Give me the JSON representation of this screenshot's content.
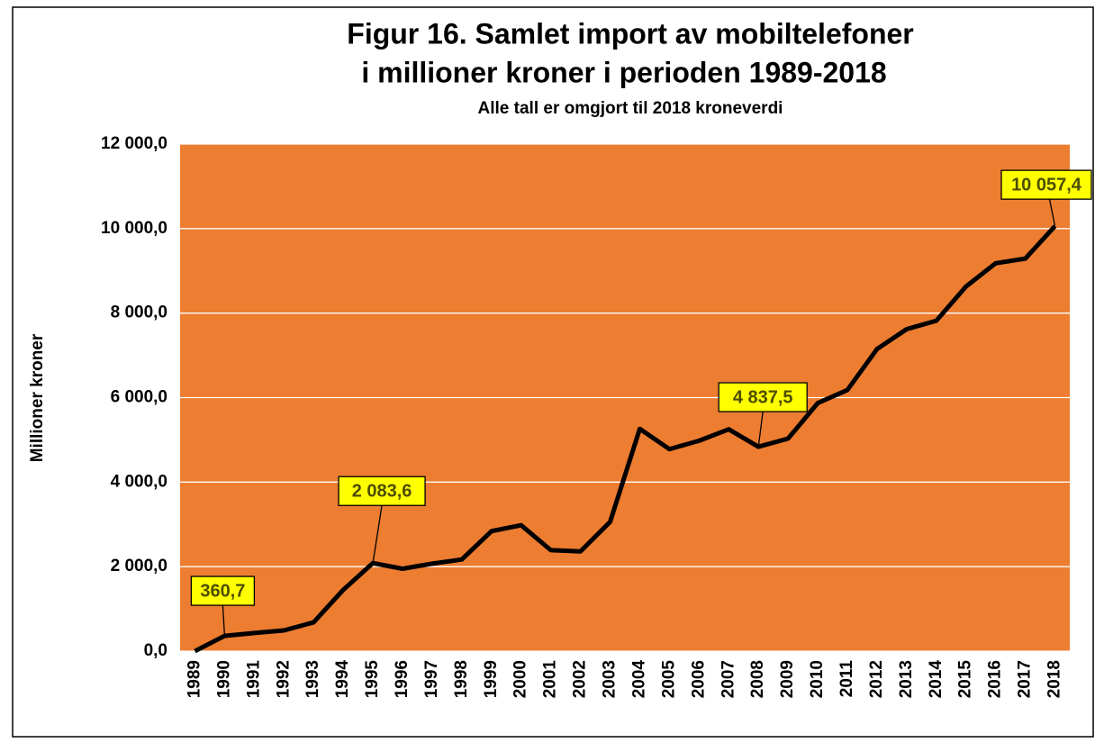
{
  "chart_data": {
    "type": "line",
    "title": [
      "Figur 16. Samlet import av mobiltelefoner",
      "i millioner kroner i perioden 1989-2018"
    ],
    "subtitle": "Alle tall er omgjort til 2018 kroneverdi",
    "y_label": "Millioner kroner",
    "categories": [
      "1989",
      "1990",
      "1991",
      "1992",
      "1993",
      "1994",
      "1995",
      "1996",
      "1997",
      "1998",
      "1999",
      "2000",
      "2001",
      "2002",
      "2003",
      "2004",
      "2005",
      "2006",
      "2007",
      "2008",
      "2009",
      "2010",
      "2011",
      "2012",
      "2013",
      "2014",
      "2015",
      "2016",
      "2017",
      "2018"
    ],
    "values": [
      0,
      360.7,
      430,
      490,
      680,
      1450,
      2083.6,
      1950,
      2070,
      2170,
      2840,
      2980,
      2390,
      2360,
      3060,
      5260,
      4780,
      4980,
      5250,
      4837.5,
      5030,
      5870,
      6180,
      7150,
      7620,
      7820,
      8630,
      9180,
      9290,
      10057.4
    ],
    "value_labels": [
      null,
      "360,7",
      null,
      null,
      null,
      null,
      "2 083,6",
      null,
      null,
      null,
      null,
      null,
      null,
      null,
      null,
      null,
      null,
      null,
      null,
      "4 837,5",
      null,
      null,
      null,
      null,
      null,
      null,
      null,
      null,
      null,
      "10 057,4"
    ],
    "color": "#000000",
    "plot_background": "#ed7d31",
    "label_background": "#ffff00",
    "ylim": [
      0,
      12000
    ],
    "yticks": [
      {
        "value": 0,
        "label": "0,0"
      },
      {
        "value": 2000,
        "label": "2 000,0"
      },
      {
        "value": 4000,
        "label": "4 000,0"
      },
      {
        "value": 6000,
        "label": "6 000,0"
      },
      {
        "value": 8000,
        "label": "8 000,0"
      },
      {
        "value": 10000,
        "label": "10 000,0"
      },
      {
        "value": 12000,
        "label": "12 000,0"
      }
    ],
    "grid": true
  }
}
